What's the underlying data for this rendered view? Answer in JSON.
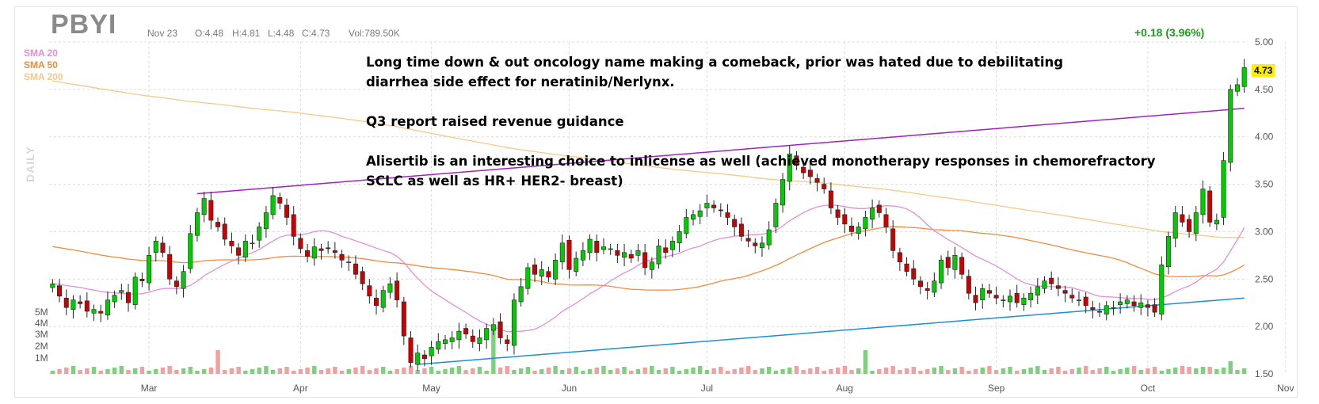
{
  "header": {
    "ticker": "PBYI",
    "date": "Nov 23",
    "open": "O:4.48",
    "high": "H:4.81",
    "low": "L:4.48",
    "close": "C:4.73",
    "volume": "Vol:789.50K",
    "change": "+0.18 (3.96%)",
    "last_price": "4.73"
  },
  "legend": {
    "sma20": "SMA 20",
    "sma50": "SMA 50",
    "sma200": "SMA 200",
    "period": "DAILY"
  },
  "annotation": {
    "line1": "Long time down & out oncology name making a comeback, prior was hated due to debilitating",
    "line2": "diarrhea side effect for neratinib/Nerlynx.",
    "line3": "",
    "line4": "Q3 report raised revenue guidance",
    "line5": "",
    "line6": "Alisertib is an interesting choice to inlicense as well (achieved monotherapy responses in chemorefractory",
    "line7": "SCLC as well as HR+ HER2- breast)"
  },
  "colors": {
    "up": "#00cc00",
    "down": "#cc0000",
    "sma20": "#e08fd8",
    "sma50": "#f08c3c",
    "sma200": "#f5c98a",
    "upper_trendline": "#a020c0",
    "lower_trendline": "#1a8fd6",
    "volume_up": "#7fcf7f",
    "volume_down": "#f0a0a0"
  },
  "chart_data": {
    "type": "candlestick",
    "ylim": [
      1.5,
      5.0
    ],
    "y_ticks": [
      "5.00",
      "4.50",
      "4.00",
      "3.50",
      "3.00",
      "2.50",
      "2.00",
      "1.50"
    ],
    "volume_ticks": [
      "5M",
      "4M",
      "3M",
      "2M",
      "1M"
    ],
    "x_ticks": [
      "Mar",
      "Apr",
      "May",
      "Jun",
      "Jul",
      "Aug",
      "Sep",
      "Oct",
      "Nov"
    ],
    "x_tick_index": [
      14,
      36,
      55,
      75,
      95,
      115,
      137,
      159,
      179
    ],
    "closes": [
      2.45,
      2.32,
      2.2,
      2.28,
      2.24,
      2.16,
      2.18,
      2.14,
      2.28,
      2.33,
      2.38,
      2.25,
      2.52,
      2.48,
      2.75,
      2.9,
      2.78,
      2.5,
      2.42,
      2.58,
      2.98,
      3.2,
      3.35,
      3.12,
      3.05,
      2.92,
      2.85,
      2.75,
      2.9,
      2.88,
      3.05,
      3.2,
      3.38,
      3.3,
      3.15,
      2.95,
      2.82,
      2.74,
      2.84,
      2.8,
      2.82,
      2.78,
      2.7,
      2.68,
      2.55,
      2.45,
      2.32,
      2.22,
      2.38,
      2.45,
      2.28,
      1.9,
      1.62,
      1.72,
      1.66,
      1.78,
      1.84,
      1.86,
      1.88,
      1.95,
      1.92,
      1.84,
      1.88,
      1.98,
      2.02,
      1.88,
      1.82,
      2.28,
      2.42,
      2.62,
      2.55,
      2.6,
      2.52,
      2.7,
      2.88,
      2.6,
      2.72,
      2.8,
      2.92,
      2.78,
      2.84,
      2.82,
      2.75,
      2.78,
      2.72,
      2.8,
      2.62,
      2.68,
      2.85,
      2.78,
      2.9,
      3.0,
      3.15,
      3.18,
      3.22,
      3.3,
      3.25,
      3.22,
      3.15,
      3.05,
      2.95,
      2.9,
      2.85,
      2.88,
      3.02,
      3.3,
      3.55,
      3.82,
      3.7,
      3.62,
      3.58,
      3.52,
      3.45,
      3.25,
      3.15,
      3.08,
      3.0,
      3.05,
      3.15,
      3.25,
      3.2,
      3.05,
      2.8,
      2.68,
      2.58,
      2.5,
      2.42,
      2.38,
      2.48,
      2.7,
      2.62,
      2.75,
      2.55,
      2.35,
      2.25,
      2.4,
      2.35,
      2.3,
      2.28,
      2.32,
      2.25,
      2.3,
      2.35,
      2.42,
      2.48,
      2.45,
      2.4,
      2.35,
      2.3,
      2.28,
      2.22,
      2.18,
      2.15,
      2.22,
      2.2,
      2.26,
      2.28,
      2.22,
      2.25,
      2.2,
      2.15,
      2.65,
      2.95,
      3.2,
      3.1,
      3.0,
      3.2,
      3.45,
      3.1,
      3.12,
      3.75,
      4.5,
      4.55,
      4.73
    ]
  }
}
